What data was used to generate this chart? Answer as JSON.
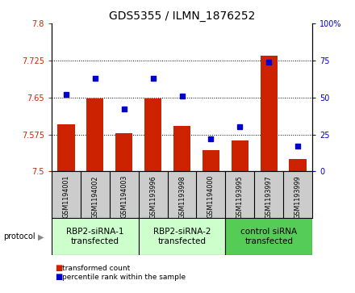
{
  "title": "GDS5355 / ILMN_1876252",
  "samples": [
    "GSM1194001",
    "GSM1194002",
    "GSM1194003",
    "GSM1193996",
    "GSM1193998",
    "GSM1194000",
    "GSM1193995",
    "GSM1193997",
    "GSM1193999"
  ],
  "bar_values": [
    7.595,
    7.648,
    7.577,
    7.648,
    7.592,
    7.543,
    7.563,
    7.735,
    7.525
  ],
  "dot_values": [
    52,
    63,
    42,
    63,
    51,
    22,
    30,
    74,
    17
  ],
  "ylim_left": [
    7.5,
    7.8
  ],
  "ylim_right": [
    0,
    100
  ],
  "yticks_left": [
    7.5,
    7.575,
    7.65,
    7.725,
    7.8
  ],
  "yticks_right": [
    0,
    25,
    50,
    75,
    100
  ],
  "ytick_labels_right": [
    "0",
    "25",
    "50",
    "75",
    "100%"
  ],
  "bar_color": "#cc2200",
  "dot_color": "#0000cc",
  "bar_bottom": 7.5,
  "groups": [
    {
      "label": "RBP2-siRNA-1\ntransfected",
      "start": 0,
      "end": 3,
      "color": "#ccffcc"
    },
    {
      "label": "RBP2-siRNA-2\ntransfected",
      "start": 3,
      "end": 6,
      "color": "#ccffcc"
    },
    {
      "label": "control siRNA\ntransfected",
      "start": 6,
      "end": 9,
      "color": "#55cc55"
    }
  ],
  "protocol_label": "protocol",
  "bg_color": "#ffffff",
  "sample_bg_color": "#cccccc",
  "legend_bar_label": "transformed count",
  "legend_dot_label": "percentile rank within the sample",
  "title_fontsize": 10,
  "tick_fontsize": 7,
  "label_fontsize": 7,
  "group_fontsize": 7.5
}
